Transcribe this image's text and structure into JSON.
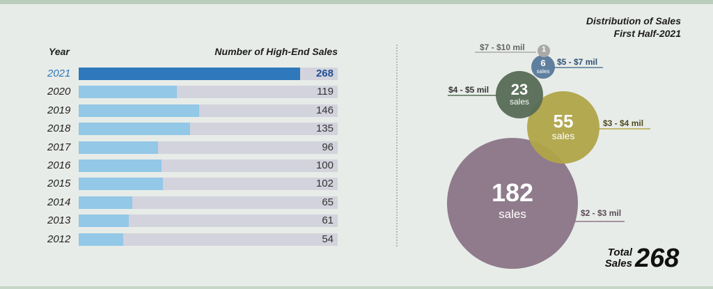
{
  "chart_data": [
    {
      "type": "bar",
      "orientation": "horizontal",
      "header_left": "Year",
      "header_right": "Number of High-End Sales",
      "categories": [
        "2021",
        "2020",
        "2019",
        "2018",
        "2017",
        "2016",
        "2015",
        "2014",
        "2013",
        "2012"
      ],
      "values": [
        268,
        119,
        146,
        135,
        96,
        100,
        102,
        65,
        61,
        54
      ],
      "highlight": "2021",
      "colors": {
        "highlight": "#2e78bb",
        "bar": "#93c8e7",
        "track": "#d3d3dd"
      }
    },
    {
      "type": "bubble",
      "title": "Distribution of Sales",
      "subtitle": "First Half-2021",
      "bubbles": [
        {
          "range": "$2 - $3 mil",
          "value": "182",
          "unit": "sales",
          "color": "#8a7587"
        },
        {
          "range": "$3 - $4 mil",
          "value": "55",
          "unit": "sales",
          "color": "#b0a548"
        },
        {
          "range": "$4 - $5 mil",
          "value": "23",
          "unit": "sales",
          "color": "#566b55"
        },
        {
          "range": "$5 - $7 mil",
          "value": "6",
          "unit": "sales",
          "color": "#57799b"
        },
        {
          "range": "$7 - $10 mil",
          "value": "1",
          "unit": "",
          "color": "#a9a9a9"
        }
      ],
      "total_label": "Total Sales",
      "total_value": "268"
    }
  ]
}
